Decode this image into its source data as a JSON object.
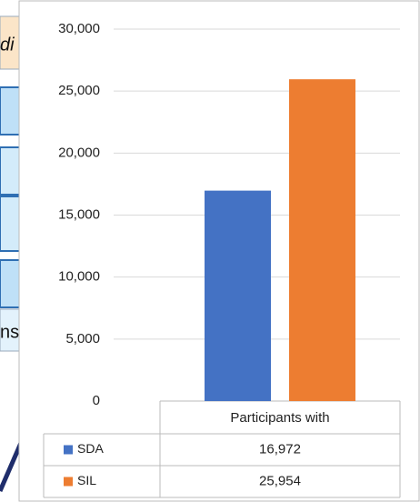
{
  "background_fragments": [
    "di",
    "ns"
  ],
  "chart_data": {
    "type": "bar",
    "categories": [
      "Participants with"
    ],
    "series": [
      {
        "name": "SDA",
        "color": "#4472c4",
        "values": [
          16972
        ],
        "value_labels": [
          "16,972"
        ]
      },
      {
        "name": "SIL",
        "color": "#ed7d31",
        "values": [
          25954
        ],
        "value_labels": [
          "25,954"
        ]
      }
    ],
    "ylim": [
      0,
      30000
    ],
    "yticks": [
      0,
      {
        "value": 5000,
        "label": "5,000"
      },
      {
        "value": 10000,
        "label": "10,000"
      },
      {
        "value": 15000,
        "label": "15,000"
      },
      {
        "value": 20000,
        "label": "20,000"
      },
      {
        "value": 25000,
        "label": "25,000"
      },
      {
        "value": 30000,
        "label": "30,000"
      }
    ],
    "grid": true,
    "data_table": true
  }
}
